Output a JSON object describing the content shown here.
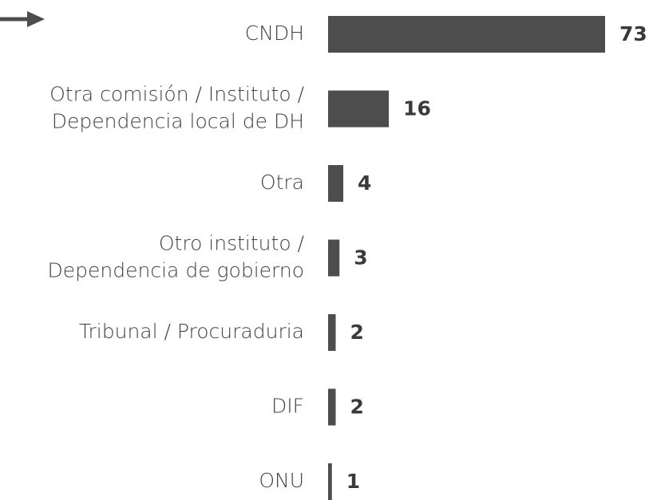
{
  "chart_data": {
    "type": "bar",
    "orientation": "horizontal",
    "categories": [
      "CNDH",
      "Otra comisión / Instituto /\nDependencia local de DH",
      "Otra",
      "Otro instituto /\nDependencia de gobierno",
      "Tribunal / Procuraduria",
      "DIF",
      "ONU"
    ],
    "values": [
      73,
      16,
      4,
      3,
      2,
      2,
      1
    ],
    "color": "#4d4d4d"
  }
}
